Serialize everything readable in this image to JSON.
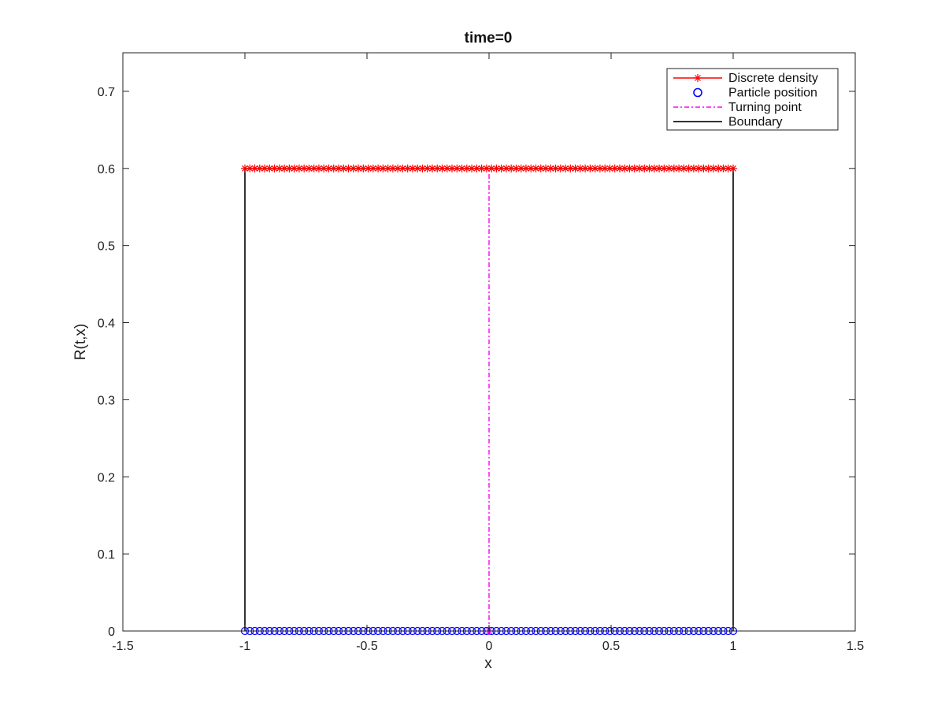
{
  "chart_data": {
    "type": "line",
    "title": "time=0",
    "xlabel": "x",
    "ylabel": "R(t,x)",
    "xlim": [
      -1.5,
      1.5
    ],
    "ylim": [
      0,
      0.75
    ],
    "xticks": [
      -1.5,
      -1,
      -0.5,
      0,
      0.5,
      1,
      1.5
    ],
    "xtick_labels": [
      "-1.5",
      "-1",
      "-0.5",
      "0",
      "0.5",
      "1",
      "1.5"
    ],
    "yticks": [
      0,
      0.1,
      0.2,
      0.3,
      0.4,
      0.5,
      0.6,
      0.7
    ],
    "ytick_labels": [
      "0",
      "0.1",
      "0.2",
      "0.3",
      "0.4",
      "0.5",
      "0.6",
      "0.7"
    ],
    "grid": false,
    "legend_position": "top-right",
    "series": [
      {
        "name": "Discrete density",
        "style": "line-star",
        "color": "#ff0000",
        "x_range": [
          -1,
          1
        ],
        "y_constant": 0.6,
        "n_points": 100
      },
      {
        "name": "Particle position",
        "style": "circle",
        "color": "#0000ff",
        "x_range": [
          -1,
          1
        ],
        "y_constant": 0,
        "n_points": 100
      },
      {
        "name": "Turning point",
        "style": "dash-dot",
        "color": "#ff00ff",
        "x": [
          0,
          0
        ],
        "y": [
          0,
          0.6
        ],
        "marker_at": [
          0,
          0
        ]
      },
      {
        "name": "Boundary",
        "style": "solid",
        "color": "#000000",
        "x": [
          -1,
          -1,
          1,
          1
        ],
        "y": [
          0,
          0.6,
          0.6,
          0
        ]
      }
    ]
  }
}
